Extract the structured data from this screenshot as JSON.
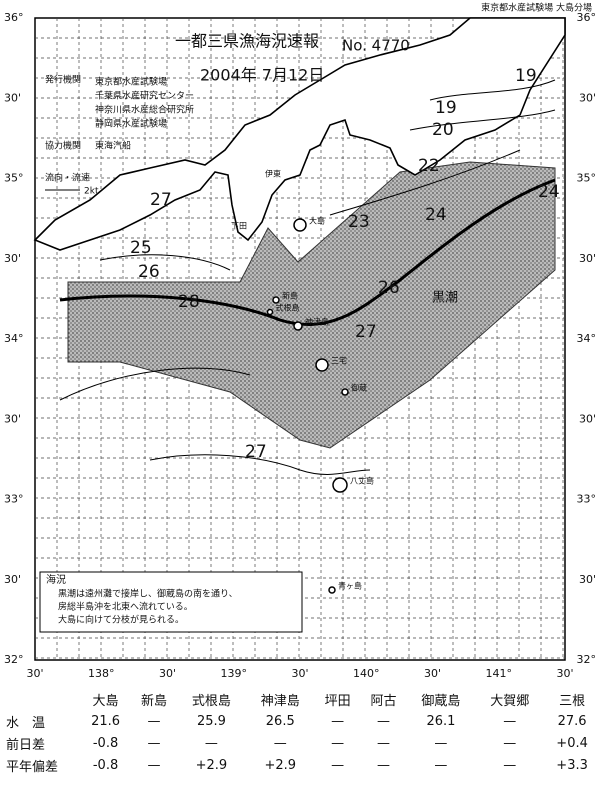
{
  "header": {
    "source": "東京都水産試験場 大島分場",
    "title": "一都三県漁海況速報",
    "number": "No. 4770",
    "date": "2004年 7月12日",
    "issuer_label": "発行機関",
    "issuers": [
      "東京都水産試験場",
      "千葉県水産研究センター",
      "神奈川県水産総合研究所",
      "静岡県水産試験場"
    ],
    "cooperator_label": "協力機関",
    "cooperator": "東海汽船"
  },
  "map": {
    "lat_labels": [
      "36°",
      "30'",
      "35°",
      "30'",
      "34°",
      "30'",
      "33°",
      "30'",
      "32°"
    ],
    "lon_labels": [
      "30'",
      "138°",
      "30'",
      "139°",
      "30'",
      "140°",
      "30'",
      "141°",
      "30'"
    ],
    "legend": {
      "label": "流向・流速",
      "speed": "2kt"
    },
    "current_label": "黒潮",
    "isotherms": [
      19,
      19,
      20,
      22,
      23,
      24,
      24,
      25,
      26,
      26,
      27,
      27,
      27,
      28
    ],
    "places": [
      "大島",
      "新島",
      "式根島",
      "神津島",
      "三宅",
      "御蔵",
      "八丈島",
      "青ヶ島",
      "下田",
      "伊東"
    ]
  },
  "notes": {
    "title": "海況",
    "lines": [
      "黒潮は遠州灘で接岸し、御蔵島の南を通り、",
      "房総半島沖を北東へ流れている。",
      "大島に向けて分枝が見られる。"
    ]
  },
  "table": {
    "columns": [
      "大島",
      "新島",
      "式根島",
      "神津島",
      "坪田",
      "阿古",
      "御蔵島",
      "大賀郷",
      "三根"
    ],
    "rows": [
      {
        "label": "水　温",
        "cells": [
          "21.6",
          "—",
          "25.9",
          "26.5",
          "—",
          "—",
          "26.1",
          "—",
          "27.6"
        ]
      },
      {
        "label": "前日差",
        "cells": [
          "-0.8",
          "—",
          "—",
          "—",
          "—",
          "—",
          "—",
          "—",
          "+0.4"
        ]
      },
      {
        "label": "平年偏差",
        "cells": [
          "-0.8",
          "—",
          "+2.9",
          "+2.9",
          "—",
          "—",
          "—",
          "—",
          "+3.3"
        ]
      }
    ]
  }
}
